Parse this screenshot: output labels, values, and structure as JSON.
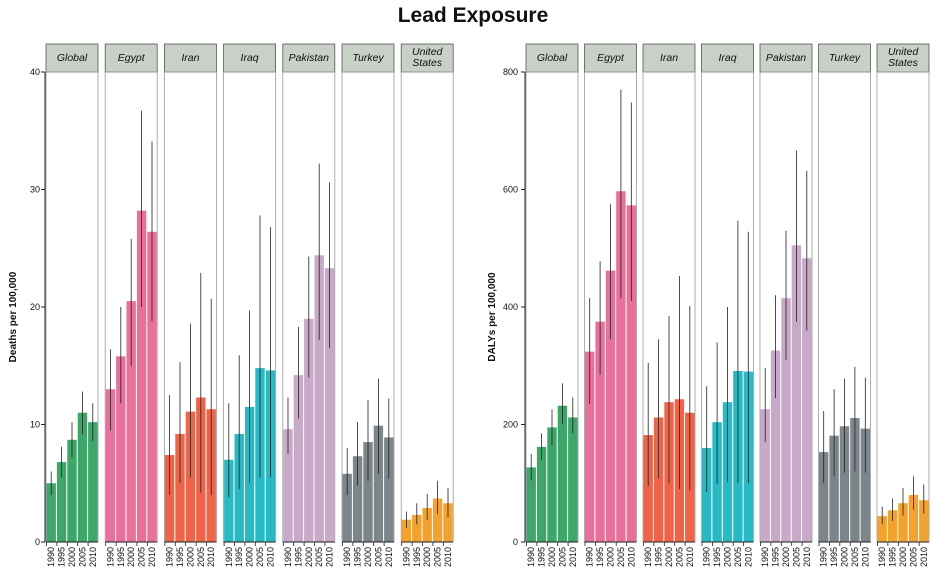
{
  "title": "Lead Exposure",
  "chart_data": [
    {
      "type": "bar",
      "ylabel": "Deaths per 100,000",
      "ylim": [
        0,
        40
      ],
      "yticks": [
        0,
        10,
        20,
        30,
        40
      ],
      "years": [
        "1990",
        "1995",
        "2000",
        "2005",
        "2010"
      ],
      "panels": [
        {
          "name": "Global",
          "color": "#3fa66a",
          "values": [
            5.0,
            6.8,
            8.7,
            11.0,
            10.2
          ],
          "lower": [
            4.0,
            5.5,
            7.2,
            9.2,
            8.6
          ],
          "upper": [
            6.0,
            8.1,
            10.2,
            12.8,
            11.8
          ]
        },
        {
          "name": "Egypt",
          "color": "#e8709a",
          "values": [
            13.0,
            15.8,
            20.5,
            28.2,
            26.4
          ],
          "lower": [
            9.5,
            11.8,
            15.0,
            20.0,
            18.8
          ],
          "upper": [
            16.4,
            20.0,
            25.8,
            36.7,
            34.1
          ]
        },
        {
          "name": "Iran",
          "color": "#ef6448",
          "values": [
            7.4,
            9.2,
            11.1,
            12.3,
            11.3
          ],
          "lower": [
            4.0,
            5.0,
            5.5,
            4.2,
            4.0
          ],
          "upper": [
            12.5,
            15.3,
            18.6,
            22.9,
            20.7
          ]
        },
        {
          "name": "Iraq",
          "color": "#27b9c4",
          "values": [
            7.0,
            9.2,
            11.5,
            14.8,
            14.6
          ],
          "lower": [
            3.8,
            4.5,
            5.0,
            5.5,
            5.5
          ],
          "upper": [
            11.8,
            15.9,
            19.7,
            27.8,
            26.8
          ]
        },
        {
          "name": "Pakistan",
          "color": "#c8aac8",
          "values": [
            9.6,
            14.2,
            19.0,
            24.4,
            23.3
          ],
          "lower": [
            7.5,
            10.5,
            14.0,
            17.2,
            16.5
          ],
          "upper": [
            12.3,
            18.3,
            24.3,
            32.2,
            30.6
          ]
        },
        {
          "name": "Turkey",
          "color": "#7c8589",
          "values": [
            5.8,
            7.3,
            8.5,
            9.9,
            8.9
          ],
          "lower": [
            4.0,
            4.8,
            5.2,
            5.8,
            5.4
          ],
          "upper": [
            8.0,
            10.2,
            12.1,
            13.9,
            12.2
          ]
        },
        {
          "name": "United States",
          "label_lines": [
            "United",
            "States"
          ],
          "color": "#f2a22d",
          "values": [
            1.9,
            2.3,
            2.9,
            3.7,
            3.3
          ],
          "lower": [
            1.2,
            1.5,
            1.9,
            2.4,
            2.1
          ],
          "upper": [
            2.6,
            3.3,
            4.1,
            5.2,
            4.6
          ]
        }
      ]
    },
    {
      "type": "bar",
      "ylabel": "DALYs per 100,000",
      "ylim": [
        0,
        800
      ],
      "yticks": [
        0,
        200,
        400,
        600,
        800
      ],
      "years": [
        "1990",
        "1995",
        "2000",
        "2005",
        "2010"
      ],
      "panels": [
        {
          "name": "Global",
          "color": "#3fa66a",
          "values": [
            127,
            162,
            195,
            232,
            212
          ],
          "lower": [
            105,
            140,
            165,
            200,
            185
          ],
          "upper": [
            150,
            185,
            226,
            270,
            246
          ]
        },
        {
          "name": "Egypt",
          "color": "#e8709a",
          "values": [
            324,
            375,
            462,
            597,
            573
          ],
          "lower": [
            235,
            285,
            345,
            415,
            410
          ],
          "upper": [
            415,
            478,
            575,
            770,
            748
          ]
        },
        {
          "name": "Iran",
          "color": "#ef6448",
          "values": [
            182,
            212,
            238,
            243,
            220
          ],
          "lower": [
            95,
            108,
            100,
            90,
            88
          ],
          "upper": [
            305,
            345,
            385,
            453,
            402
          ]
        },
        {
          "name": "Iraq",
          "color": "#27b9c4",
          "values": [
            160,
            204,
            238,
            291,
            290
          ],
          "lower": [
            85,
            98,
            102,
            100,
            100
          ],
          "upper": [
            265,
            340,
            400,
            547,
            528
          ]
        },
        {
          "name": "Pakistan",
          "color": "#c8aac8",
          "values": [
            226,
            326,
            415,
            505,
            483
          ],
          "lower": [
            170,
            245,
            310,
            375,
            360
          ],
          "upper": [
            296,
            420,
            530,
            666,
            632
          ]
        },
        {
          "name": "Turkey",
          "color": "#7c8589",
          "values": [
            153,
            181,
            197,
            211,
            193
          ],
          "lower": [
            100,
            112,
            118,
            120,
            118
          ],
          "upper": [
            223,
            260,
            278,
            298,
            280
          ]
        },
        {
          "name": "United States",
          "label_lines": [
            "United",
            "States"
          ],
          "color": "#f2a22d",
          "values": [
            44,
            54,
            66,
            80,
            71
          ],
          "lower": [
            30,
            36,
            45,
            55,
            48
          ],
          "upper": [
            60,
            74,
            92,
            112,
            98
          ]
        }
      ]
    }
  ]
}
